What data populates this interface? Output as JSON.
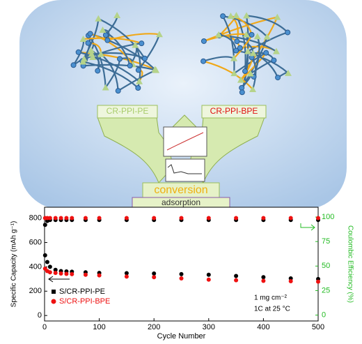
{
  "diagram": {
    "left_label": "CR-PPI-PE",
    "right_label": "CR-PPI-BPE",
    "process_top": "conversion",
    "process_bottom": "adsorption"
  },
  "chart_data": {
    "type": "scatter",
    "xlabel": "Cycle Number",
    "ylabel": "Specific Capacity (mAh g⁻¹)",
    "y2label": "Coulombic Efficiency (%)",
    "annotations": [
      "1 mg cm⁻²",
      "1C at 25 °C"
    ],
    "x": [
      1,
      5,
      10,
      20,
      30,
      40,
      50,
      75,
      100,
      150,
      200,
      250,
      300,
      350,
      400,
      450,
      500
    ],
    "series": [
      {
        "name": "S/CR-PPI-PE",
        "color": "#000000",
        "values": [
          495,
          440,
          400,
          375,
          365,
          362,
          360,
          355,
          350,
          348,
          345,
          340,
          335,
          325,
          315,
          305,
          300
        ]
      },
      {
        "name": "S/CR-PPI-BPE",
        "color": "#ee1111",
        "values": [
          385,
          365,
          355,
          350,
          345,
          342,
          340,
          335,
          330,
          320,
          315,
          305,
          295,
          290,
          285,
          282,
          278
        ]
      },
      {
        "color": "#000000",
        "axis": "y2",
        "values": [
          92,
          96,
          97,
          97,
          97,
          97,
          97,
          97,
          97,
          97,
          97,
          97,
          97,
          97,
          97,
          97,
          97
        ]
      },
      {
        "color": "#ee1111",
        "axis": "y2",
        "values": [
          99,
          99,
          99,
          99,
          99,
          99,
          99,
          99,
          99,
          99,
          99,
          99,
          99,
          99,
          99,
          99,
          99
        ]
      }
    ],
    "xlim": [
      0,
      500
    ],
    "xticks": [
      0,
      100,
      200,
      300,
      400,
      500
    ],
    "ylim": [
      -45,
      890
    ],
    "yticks": [
      0,
      200,
      400,
      600,
      800
    ],
    "y2lim": [
      -6,
      110
    ],
    "y2ticks": [
      0,
      25,
      50,
      75,
      100
    ],
    "y2color": "#22bb22"
  }
}
